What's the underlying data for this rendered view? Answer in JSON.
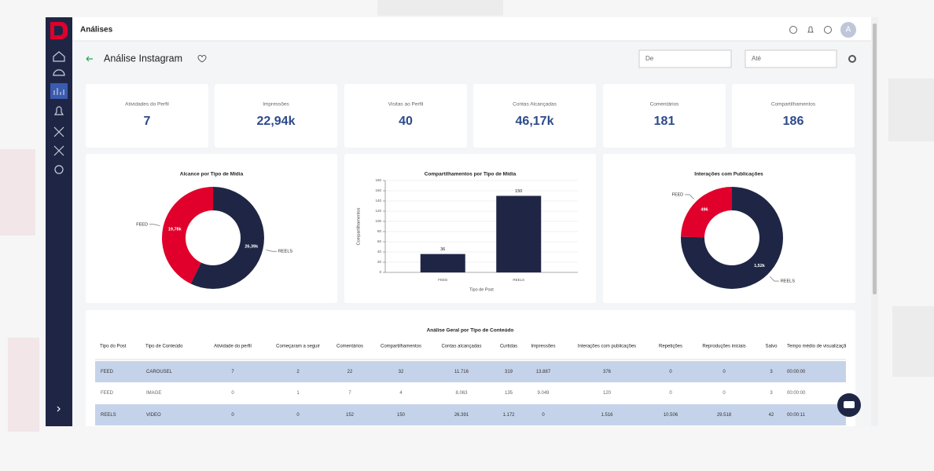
{
  "header": {
    "title": "Análises",
    "avatar": "A"
  },
  "page": {
    "title": "Análise Instagram",
    "date_from": "De",
    "date_to": "Até"
  },
  "kpis": [
    {
      "label": "Atividades do Perfil",
      "value": "7"
    },
    {
      "label": "Impressões",
      "value": "22,94k"
    },
    {
      "label": "Visitas ao Perfil",
      "value": "40"
    },
    {
      "label": "Contas Alcançadas",
      "value": "46,17k"
    },
    {
      "label": "Comentários",
      "value": "181"
    },
    {
      "label": "Compartilhamentos",
      "value": "186"
    }
  ],
  "chart_data": [
    {
      "type": "donut",
      "title": "Alcance por Tipo de Mídia",
      "categories": [
        "FEED",
        "REELS"
      ],
      "values": [
        19779,
        26391
      ],
      "value_labels": [
        "19,78k",
        "26,39k"
      ],
      "colors": [
        "#e0002b",
        "#1f2645"
      ]
    },
    {
      "type": "bar",
      "title": "Compartilhamentos por Tipo de Mídia",
      "x_label": "Tipo de Post",
      "y_label": "Compartilhamentos",
      "categories": [
        "FEED",
        "REELS"
      ],
      "values": [
        36,
        150
      ],
      "color": "#1f2645",
      "ylim": [
        0,
        180
      ],
      "yticks": [
        0,
        20,
        40,
        60,
        80,
        100,
        120,
        140,
        160,
        180
      ],
      "grid": true
    },
    {
      "type": "donut",
      "title": "Interações com Publicações",
      "categories": [
        "FEED",
        "REELS"
      ],
      "values": [
        496,
        1516
      ],
      "value_labels": [
        "496",
        "1,52k"
      ],
      "colors": [
        "#e0002b",
        "#1f2645"
      ]
    }
  ],
  "table": {
    "title": "Análise Geral por Tipo de Conteúdo",
    "columns": [
      "Tipo do Post",
      "Tipo de Conteúdo",
      "Atividade do perfil",
      "Começaram a seguir",
      "Comentários",
      "Compartilhamentos",
      "Contas alcançadas",
      "Curtidas",
      "Impressões",
      "Interações com publicações",
      "Repetições",
      "Reproduções iniciais",
      "Salvo",
      "Tempo médio de visualização de reels (milissegundos)"
    ],
    "rows": [
      [
        "FEED",
        "CAROUSEL",
        "7",
        "2",
        "22",
        "32",
        "11.716",
        "319",
        "13.887",
        "376",
        "0",
        "0",
        "3",
        "00:00:00"
      ],
      [
        "FEED",
        "IMAGE",
        "0",
        "1",
        "7",
        "4",
        "8.063",
        "135",
        "9.049",
        "120",
        "0",
        "0",
        "3",
        "00:00:00"
      ],
      [
        "REELS",
        "VIDEO",
        "0",
        "0",
        "152",
        "150",
        "26.391",
        "1.172",
        "0",
        "1.516",
        "10.506",
        "29.518",
        "42",
        "00:00:11"
      ]
    ]
  }
}
